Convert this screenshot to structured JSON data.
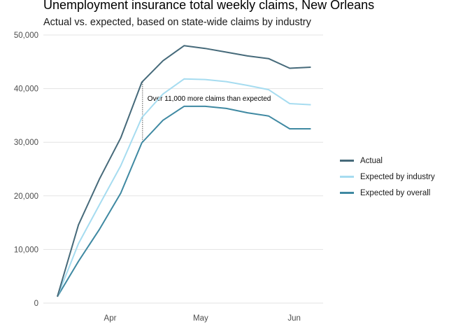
{
  "chart_data": {
    "type": "line",
    "title": "Unemployment insurance total weekly claims, New Orleans",
    "subtitle": "Actual vs. expected, based on state-wide claims by industry",
    "xlabel": "",
    "ylabel": "",
    "x": [
      "Mar 14",
      "Mar 21",
      "Mar 28",
      "Apr 4",
      "Apr 11",
      "Apr 18",
      "Apr 25",
      "May 2",
      "May 9",
      "May 16",
      "May 23",
      "May 30",
      "Jun 6"
    ],
    "x_ticks": [
      {
        "label": "Apr",
        "day_offset": 17.5
      },
      {
        "label": "May",
        "day_offset": 47.5
      },
      {
        "label": "Jun",
        "day_offset": 78.5
      }
    ],
    "ylim": [
      0,
      50000
    ],
    "y_ticks": [
      {
        "value": 0,
        "label": "0"
      },
      {
        "value": 10000,
        "label": "10,000"
      },
      {
        "value": 20000,
        "label": "20,000"
      },
      {
        "value": 30000,
        "label": "30,000"
      },
      {
        "value": 40000,
        "label": "40,000"
      },
      {
        "value": 50000,
        "label": "50,000"
      }
    ],
    "grid": true,
    "legend_position": "right",
    "series": [
      {
        "name": "Actual",
        "color": "#466a7a",
        "values": [
          1200,
          14600,
          23200,
          30800,
          41200,
          45200,
          48000,
          47500,
          46800,
          46100,
          45600,
          43800,
          44000
        ]
      },
      {
        "name": "Expected by industry",
        "color": "#a6dcf0",
        "values": [
          1200,
          11100,
          18400,
          25600,
          34600,
          39000,
          41800,
          41700,
          41300,
          40600,
          39800,
          37200,
          37000
        ]
      },
      {
        "name": "Expected by overall",
        "color": "#3f89a2",
        "values": [
          1200,
          7800,
          13800,
          20500,
          29900,
          34100,
          36700,
          36700,
          36300,
          35500,
          34900,
          32500,
          32500
        ]
      }
    ],
    "annotation": {
      "text": "Over 11,000 more claims than expected",
      "x_index": 4,
      "from_value": 41200,
      "to_value": 29900,
      "label_value": 38100
    }
  }
}
